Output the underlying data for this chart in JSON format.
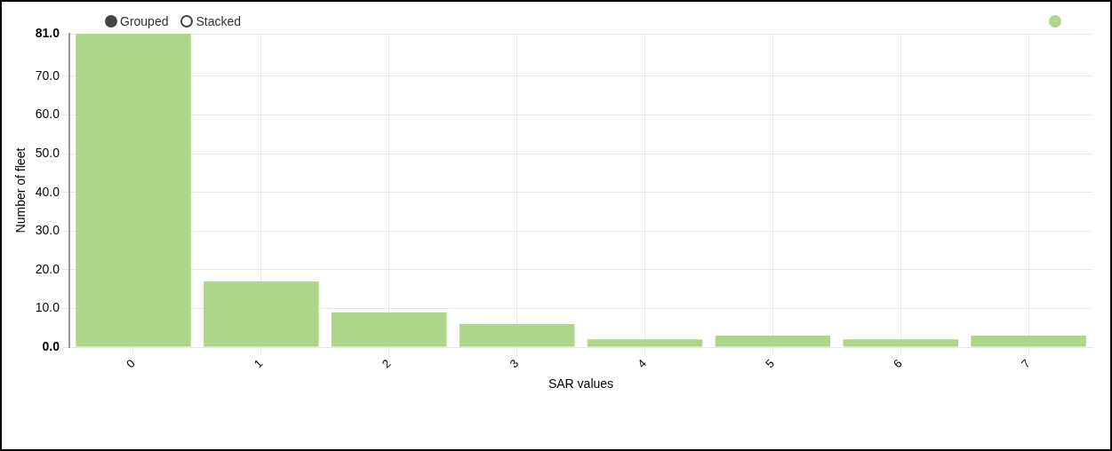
{
  "chart_data": {
    "type": "bar",
    "xlabel": "SAR values",
    "ylabel": "Number of fleet",
    "categories": [
      "0",
      "1",
      "2",
      "3",
      "4",
      "5",
      "6",
      "7"
    ],
    "series": [
      {
        "color": "#aed68a",
        "values": [
          81,
          17,
          9,
          6,
          2,
          3,
          2,
          3
        ]
      }
    ],
    "ylim": [
      0,
      81
    ],
    "yticks": [
      {
        "value": 0,
        "label": "0.0"
      },
      {
        "value": 10,
        "label": "10.0"
      },
      {
        "value": 20,
        "label": "20.0"
      },
      {
        "value": 30,
        "label": "30.0"
      },
      {
        "value": 40,
        "label": "40.0"
      },
      {
        "value": 50,
        "label": "50.0"
      },
      {
        "value": 60,
        "label": "60.0"
      },
      {
        "value": 70,
        "label": "70.0"
      },
      {
        "value": 81,
        "label": "81.0"
      }
    ],
    "grid": true,
    "annotations": [
      "Grouped",
      "Stacked"
    ]
  }
}
